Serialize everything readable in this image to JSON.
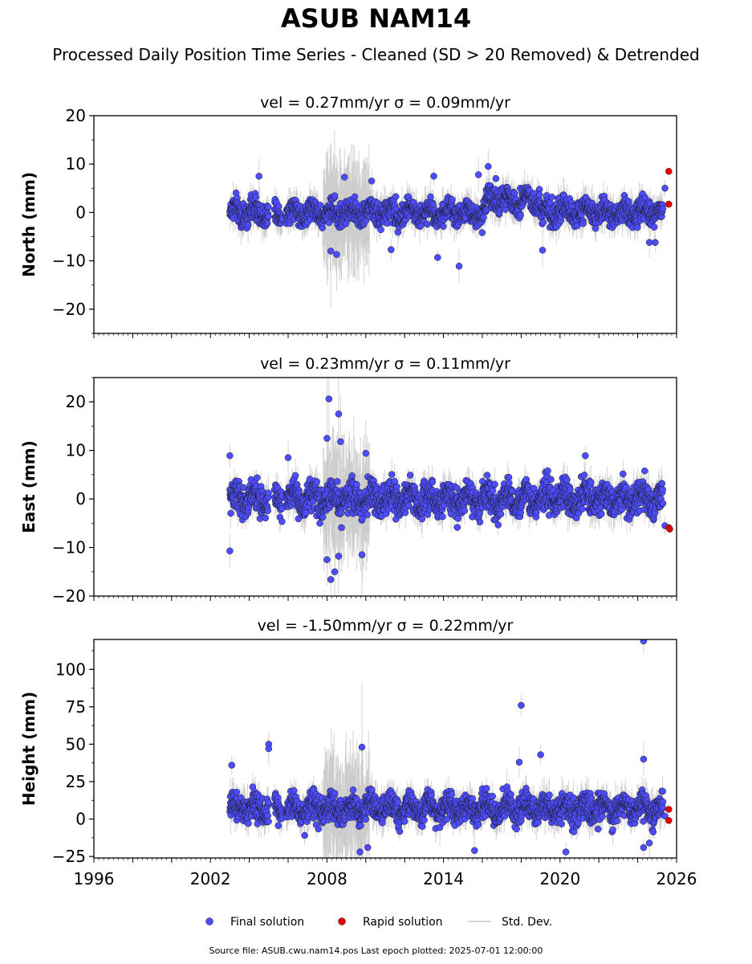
{
  "title": "ASUB NAM14",
  "subtitle": "Processed Daily Position Time Series - Cleaned (SD > 20 Removed) & Detrended",
  "source_note": "Source file: ASUB.cwu.nam14.pos  Last epoch plotted: 2025-07-01 12:00:00",
  "colors": {
    "final": "#4d4dff",
    "rapid": "#e60000",
    "std": "#c8c8c8",
    "edge": "#1a1a1a"
  },
  "chart_data": [
    {
      "type": "scatter",
      "title": "vel = 0.27mm/yr   σ = 0.09mm/yr",
      "ylabel": "North (mm)",
      "xlim": [
        1996,
        2026
      ],
      "ylim": [
        -25,
        20
      ],
      "yticks": [
        20,
        10,
        0,
        -10,
        -20
      ],
      "ytick_labels": [
        "20",
        "10",
        "0",
        "−10",
        "−20"
      ],
      "series": [
        {
          "name": "Final solution",
          "x_start": 2003.0,
          "x_end": 2025.3,
          "y_center": 0,
          "spread": 2.2,
          "gaps": [
            [
              2005.0,
              2005.3
            ],
            [
              2005.7,
              2005.9
            ]
          ],
          "outliers": [
            [
              2008.9,
              7.3
            ],
            [
              2016.3,
              9.5
            ],
            [
              2013.5,
              7.5
            ],
            [
              2015.8,
              7.8
            ],
            [
              2010.3,
              6.5
            ],
            [
              2004.5,
              7.5
            ],
            [
              2016.7,
              7.0
            ],
            [
              2008.2,
              -8.0
            ],
            [
              2008.5,
              -8.7
            ],
            [
              2013.7,
              -9.3
            ],
            [
              2014.8,
              -11.1
            ],
            [
              2011.3,
              -7.7
            ],
            [
              2019.1,
              -7.8
            ],
            [
              2024.6,
              -6.2
            ],
            [
              2024.9,
              -6.2
            ],
            [
              2025.4,
              5.0
            ]
          ]
        },
        {
          "name": "Rapid solution",
          "points": [
            [
              2025.6,
              8.5
            ],
            [
              2025.6,
              1.7
            ]
          ]
        }
      ]
    },
    {
      "type": "scatter",
      "title": "vel = 0.23mm/yr   σ = 0.11mm/yr",
      "ylabel": "East (mm)",
      "xlim": [
        1996,
        2026
      ],
      "ylim": [
        -20,
        25
      ],
      "yticks": [
        20,
        10,
        0,
        -10,
        -20
      ],
      "ytick_labels": [
        "20",
        "10",
        "0",
        "−10",
        "−20"
      ],
      "series": [
        {
          "name": "Final solution",
          "x_start": 2003.0,
          "x_end": 2025.3,
          "y_center": 0,
          "spread": 2.8,
          "gaps": [
            [
              2005.0,
              2005.3
            ],
            [
              2005.7,
              2005.9
            ]
          ],
          "outliers": [
            [
              2008.1,
              20.6
            ],
            [
              2008.6,
              17.5
            ],
            [
              2008.7,
              11.8
            ],
            [
              2008.0,
              12.5
            ],
            [
              2003.0,
              8.9
            ],
            [
              2006.0,
              8.5
            ],
            [
              2010.0,
              9.4
            ],
            [
              2021.3,
              8.9
            ],
            [
              2003.0,
              -10.7
            ],
            [
              2008.2,
              -16.6
            ],
            [
              2008.4,
              -15.0
            ],
            [
              2008.0,
              -12.5
            ],
            [
              2008.6,
              -11.8
            ],
            [
              2009.8,
              -11.5
            ],
            [
              2025.4,
              -5.5
            ]
          ]
        },
        {
          "name": "Rapid solution",
          "points": [
            [
              2025.6,
              -5.9
            ],
            [
              2025.65,
              -6.2
            ]
          ]
        }
      ]
    },
    {
      "type": "scatter",
      "title": "vel = -1.50mm/yr   σ = 0.22mm/yr",
      "ylabel": "Height (mm)",
      "xlabel": "",
      "xlim": [
        1996,
        2026
      ],
      "ylim": [
        -26,
        120
      ],
      "yticks": [
        100,
        75,
        50,
        25,
        0,
        -25
      ],
      "ytick_labels": [
        "100",
        "75",
        "50",
        "25",
        "0",
        "−25"
      ],
      "xticks": [
        1996,
        2002,
        2008,
        2014,
        2020,
        2026
      ],
      "xtick_labels": [
        "1996",
        "2002",
        "2008",
        "2014",
        "2020",
        "2026"
      ],
      "series": [
        {
          "name": "Final solution",
          "x_start": 2003.0,
          "x_end": 2025.3,
          "y_center": 7,
          "spread": 8,
          "gaps": [
            [
              2005.0,
              2005.3
            ],
            [
              2005.7,
              2005.9
            ]
          ],
          "outliers": [
            [
              2003.1,
              36.0
            ],
            [
              2005.0,
              50.0
            ],
            [
              2005.0,
              47.0
            ],
            [
              2009.8,
              48.0
            ],
            [
              2018.0,
              76.0
            ],
            [
              2017.9,
              38.0
            ],
            [
              2019.0,
              43.0
            ],
            [
              2024.3,
              40.0
            ],
            [
              2024.3,
              119.0
            ],
            [
              2009.7,
              -22.0
            ],
            [
              2010.1,
              -19.0
            ],
            [
              2015.6,
              -21.0
            ],
            [
              2020.3,
              -22.0
            ],
            [
              2024.6,
              -16.0
            ],
            [
              2024.3,
              -19.0
            ],
            [
              2025.4,
              2.0
            ]
          ]
        },
        {
          "name": "Rapid solution",
          "points": [
            [
              2025.6,
              6.5
            ],
            [
              2025.6,
              -1.0
            ]
          ]
        }
      ]
    }
  ],
  "legend": [
    {
      "label": "Final solution",
      "kind": "final"
    },
    {
      "label": "Rapid solution",
      "kind": "rapid"
    },
    {
      "label": "Std. Dev.",
      "kind": "std"
    }
  ]
}
